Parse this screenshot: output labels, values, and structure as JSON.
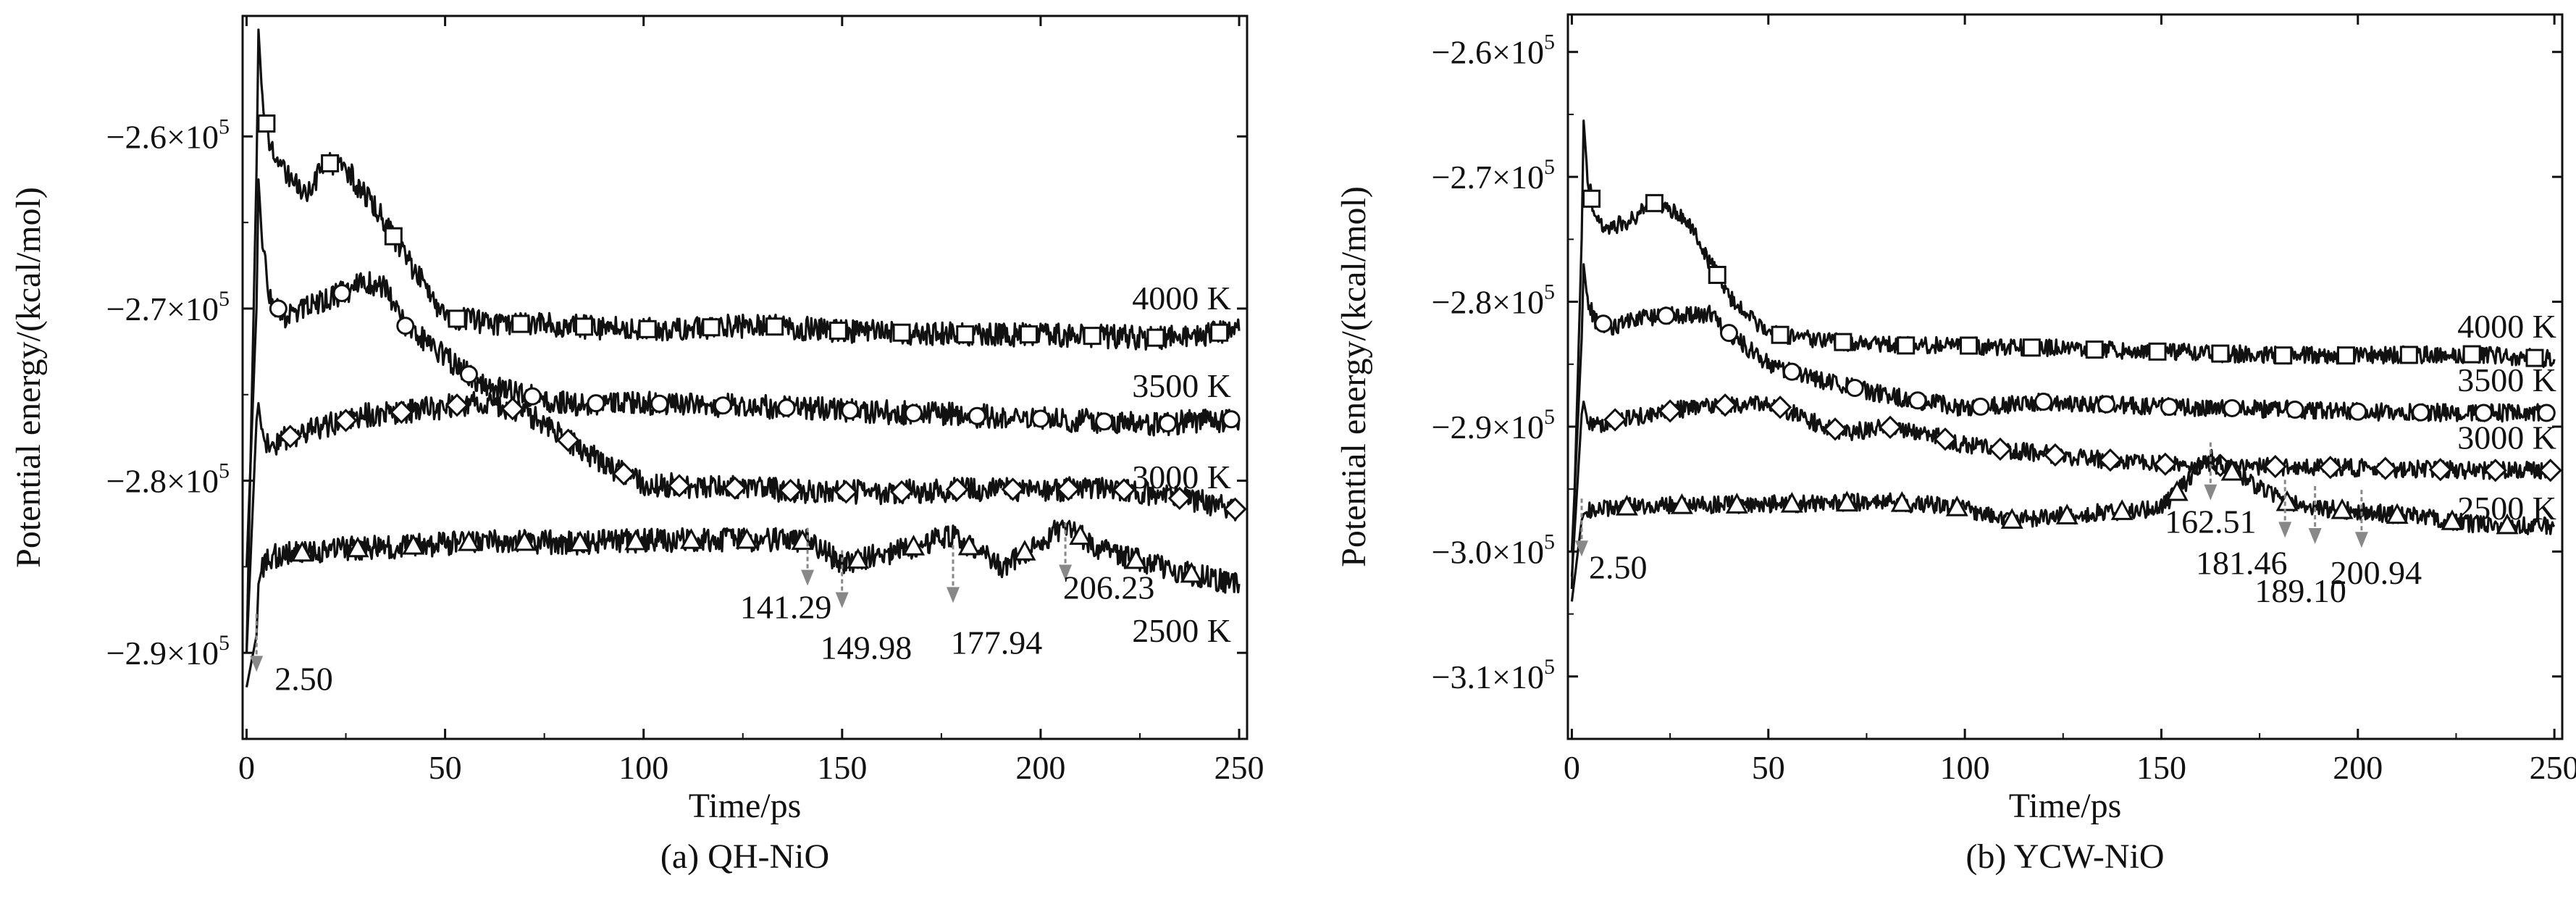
{
  "chart_data": [
    {
      "type": "line",
      "caption": "(a) QH-NiO",
      "xlabel": "Time/ps",
      "ylabel": "Potential energy/(kcal/mol)",
      "xlim": [
        -1,
        252
      ],
      "ylim": [
        -295000,
        -253000
      ],
      "x_ticks": [
        0,
        50,
        100,
        150,
        200,
        250
      ],
      "x_tick_labels": [
        "0",
        "50",
        "100",
        "150",
        "200",
        "250"
      ],
      "y_ticks": [
        -260000,
        -270000,
        -280000,
        -290000
      ],
      "y_tick_labels": [
        [
          "−2.6×10",
          "5"
        ],
        [
          "−2.7×10",
          "5"
        ],
        [
          "−2.8×10",
          "5"
        ],
        [
          "−2.9×10",
          "5"
        ]
      ],
      "grid": false,
      "series": [
        {
          "name": "4000 K",
          "marker": "square",
          "x": [
            0,
            2.5,
            3,
            4,
            6,
            10,
            15,
            20,
            25,
            30,
            35,
            40,
            50,
            60,
            80,
            100,
            130,
            150,
            180,
            200,
            230,
            250
          ],
          "y": [
            -290000,
            -262000,
            -253800,
            -258000,
            -260500,
            -262000,
            -263500,
            -261500,
            -261800,
            -263500,
            -265000,
            -267000,
            -270500,
            -270800,
            -271000,
            -271200,
            -271000,
            -271300,
            -271500,
            -271500,
            -271700,
            -271300
          ]
        },
        {
          "name": "3500 K",
          "marker": "circle",
          "x": [
            0,
            2.5,
            3,
            4,
            6,
            10,
            20,
            30,
            35,
            40,
            50,
            60,
            80,
            100,
            130,
            150,
            180,
            200,
            230,
            250
          ],
          "y": [
            -285000,
            -270000,
            -262500,
            -266500,
            -269500,
            -270500,
            -269500,
            -268500,
            -268800,
            -271000,
            -272800,
            -274500,
            -275500,
            -275500,
            -275700,
            -275900,
            -276200,
            -276400,
            -276700,
            -276400
          ]
        },
        {
          "name": "3000 K",
          "marker": "diamond",
          "x": [
            0,
            2.5,
            3,
            4,
            6,
            10,
            20,
            30,
            40,
            50,
            60,
            70,
            80,
            90,
            100,
            120,
            140,
            160,
            180,
            200,
            220,
            240,
            250
          ],
          "y": [
            -290000,
            -276500,
            -275500,
            -277500,
            -278000,
            -277500,
            -276800,
            -276200,
            -276000,
            -275700,
            -275400,
            -276000,
            -277500,
            -279000,
            -280200,
            -280400,
            -280600,
            -280700,
            -280500,
            -280500,
            -280500,
            -281200,
            -281700
          ]
        },
        {
          "name": "2500 K",
          "marker": "triangle",
          "x": [
            0,
            2.5,
            3,
            4,
            6,
            20,
            40,
            60,
            80,
            100,
            120,
            141.29,
            149.98,
            165,
            177.94,
            190,
            206.23,
            215,
            230,
            250
          ],
          "y": [
            -292000,
            -289000,
            -286000,
            -285000,
            -284400,
            -284000,
            -283800,
            -283500,
            -283600,
            -283500,
            -283400,
            -283500,
            -284800,
            -284000,
            -283200,
            -285000,
            -282600,
            -284000,
            -285000,
            -286000
          ]
        }
      ],
      "annotations": [
        {
          "label": "2.50",
          "x": 2.5,
          "y": -289000
        },
        {
          "label": "141.29",
          "x": 141.29,
          "y": -284000
        },
        {
          "label": "149.98",
          "x": 149.98,
          "y": -285300
        },
        {
          "label": "177.94",
          "x": 177.94,
          "y": -285000
        },
        {
          "label": "206.23",
          "x": 206.23,
          "y": -283700
        }
      ]
    },
    {
      "type": "line",
      "caption": "(b) YCW-NiO",
      "xlabel": "Time/ps",
      "ylabel": "Potential energy/(kcal/mol)",
      "xlim": [
        -1,
        252
      ],
      "ylim": [
        -315000,
        -257000
      ],
      "x_ticks": [
        0,
        50,
        100,
        150,
        200,
        250
      ],
      "x_tick_labels": [
        "0",
        "50",
        "100",
        "150",
        "200",
        "250"
      ],
      "y_ticks": [
        -260000,
        -270000,
        -280000,
        -290000,
        -300000,
        -310000
      ],
      "y_tick_labels": [
        [
          "−2.6×10",
          "5"
        ],
        [
          "−2.7×10",
          "5"
        ],
        [
          "−2.8×10",
          "5"
        ],
        [
          "−2.9×10",
          "5"
        ],
        [
          "−3.0×10",
          "5"
        ],
        [
          "−3.1×10",
          "5"
        ]
      ],
      "grid": false,
      "series": [
        {
          "name": "4000 K",
          "marker": "square",
          "x": [
            0,
            2.5,
            3,
            4,
            6,
            10,
            15,
            20,
            25,
            30,
            40,
            50,
            60,
            80,
            100,
            130,
            150,
            180,
            200,
            230,
            250
          ],
          "y": [
            -303000,
            -275000,
            -265500,
            -270000,
            -273500,
            -274000,
            -273500,
            -272000,
            -272500,
            -274000,
            -279500,
            -282500,
            -283000,
            -283500,
            -283500,
            -283800,
            -284000,
            -284300,
            -284300,
            -284200,
            -284600
          ]
        },
        {
          "name": "3500 K",
          "marker": "circle",
          "x": [
            0,
            2.5,
            3,
            4,
            6,
            10,
            20,
            30,
            35,
            40,
            50,
            60,
            80,
            100,
            120,
            150,
            180,
            200,
            230,
            250
          ],
          "y": [
            -300000,
            -283000,
            -277000,
            -280000,
            -281500,
            -282000,
            -281200,
            -281000,
            -281000,
            -282500,
            -285000,
            -286000,
            -287500,
            -288500,
            -288000,
            -288400,
            -288600,
            -288800,
            -288900,
            -288900
          ]
        },
        {
          "name": "3000 K",
          "marker": "diamond",
          "x": [
            0,
            2.5,
            3,
            4,
            6,
            10,
            30,
            50,
            60,
            70,
            80,
            90,
            100,
            130,
            150,
            180,
            200,
            230,
            250
          ],
          "y": [
            -302000,
            -289000,
            -288000,
            -289500,
            -290000,
            -289500,
            -288500,
            -288000,
            -289500,
            -290500,
            -290000,
            -290500,
            -291500,
            -292500,
            -293000,
            -293200,
            -293300,
            -293500,
            -293500
          ]
        },
        {
          "name": "2500 K",
          "marker": "triangle",
          "x": [
            0,
            2.5,
            3,
            4,
            6,
            20,
            50,
            80,
            100,
            110,
            130,
            150,
            162.51,
            170,
            181.46,
            189.1,
            200.94,
            215,
            230,
            250
          ],
          "y": [
            -304000,
            -297500,
            -297000,
            -296800,
            -296500,
            -296300,
            -296200,
            -296000,
            -296500,
            -297500,
            -297000,
            -296500,
            -292500,
            -294000,
            -296000,
            -296500,
            -296800,
            -297200,
            -297800,
            -298000
          ]
        }
      ],
      "annotations": [
        {
          "label": "2.50",
          "x": 2.5,
          "y": -297500
        },
        {
          "label": "162.51",
          "x": 162.51,
          "y": -293000
        },
        {
          "label": "181.46",
          "x": 181.46,
          "y": -296000
        },
        {
          "label": "189.10",
          "x": 189.1,
          "y": -296500
        },
        {
          "label": "200.94",
          "x": 200.94,
          "y": -296800
        }
      ]
    }
  ]
}
